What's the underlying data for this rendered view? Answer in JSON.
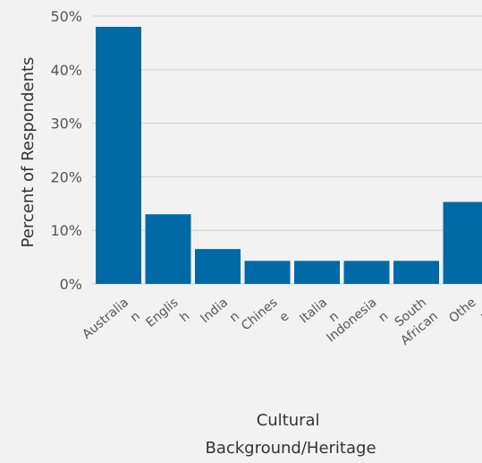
{
  "chart_data": {
    "type": "bar",
    "categories": [
      "Australian",
      "English",
      "Indian",
      "Chinese",
      "Italian",
      "Indonesian",
      "South African",
      "Other"
    ],
    "category_lines": [
      [
        "Australia",
        "n"
      ],
      [
        "Englis",
        "h"
      ],
      [
        "India",
        "n"
      ],
      [
        "Chines",
        "e"
      ],
      [
        "Italia",
        "n"
      ],
      [
        "Indonesia",
        "n"
      ],
      [
        "South",
        "African"
      ],
      [
        "Othe",
        "r"
      ]
    ],
    "values": [
      48,
      13,
      6.5,
      4.3,
      4.3,
      4.3,
      4.3,
      15.3
    ],
    "ylim": [
      0,
      50
    ],
    "yticks": [
      0,
      10,
      20,
      30,
      40,
      50
    ],
    "ytick_labels": [
      "0%",
      "10%",
      "20%",
      "30%",
      "40%",
      "50%"
    ],
    "ylabel": "Percent of Respondents",
    "xlabel_lines": [
      "Cultural",
      "Background/Heritage"
    ],
    "grid": true,
    "colors": {
      "bar": "#0069a6",
      "background": "#f2f2f2",
      "grid": "#cfcfcf"
    }
  }
}
